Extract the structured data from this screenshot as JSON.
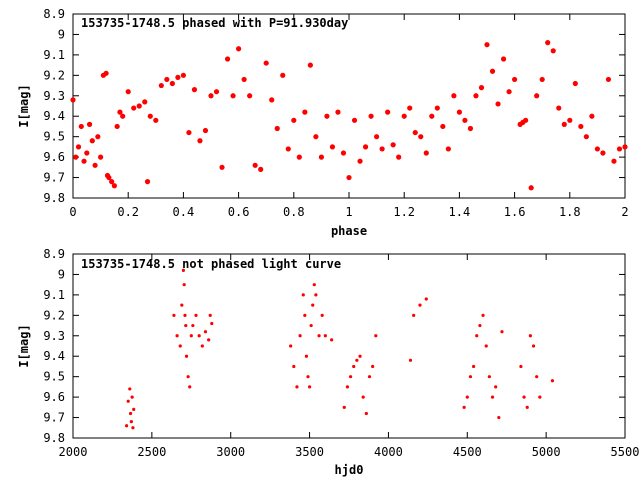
{
  "chart_data": [
    {
      "type": "scatter",
      "title": "153735-1748.5 phased with P=91.930day",
      "xlabel": "phase",
      "ylabel": "I[mag]",
      "xlim": [
        0,
        2
      ],
      "ylim": [
        9.8,
        8.9
      ],
      "y_inverted": true,
      "xticks": [
        "0",
        "0.2",
        "0.4",
        "0.6",
        "0.8",
        "1",
        "1.2",
        "1.4",
        "1.6",
        "1.8",
        "2"
      ],
      "yticks": [
        "8.9",
        "9",
        "9.1",
        "9.2",
        "9.3",
        "9.4",
        "9.5",
        "9.6",
        "9.7",
        "9.8"
      ],
      "grid": false,
      "marker_color": "#ff0000",
      "series": [
        {
          "x": [
            0.0,
            0.01,
            0.02,
            0.03,
            0.04,
            0.05,
            0.06,
            0.07,
            0.08,
            0.09,
            0.1,
            0.11,
            0.12,
            0.125,
            0.13,
            0.14,
            0.15,
            0.16,
            0.17,
            0.18,
            0.2,
            0.22,
            0.24,
            0.26,
            0.27,
            0.28,
            0.3,
            0.32,
            0.34,
            0.36,
            0.38,
            0.4,
            0.42,
            0.44,
            0.46,
            0.48,
            0.5,
            0.52,
            0.54,
            0.56,
            0.58,
            0.6,
            0.62,
            0.64,
            0.66,
            0.68,
            0.7,
            0.72,
            0.74,
            0.76,
            0.78,
            0.8,
            0.82,
            0.84,
            0.86,
            0.88,
            0.9,
            0.92,
            0.94,
            0.96,
            0.98,
            1.0,
            1.02,
            1.04,
            1.06,
            1.08,
            1.1,
            1.12,
            1.14,
            1.16,
            1.18,
            1.2,
            1.22,
            1.24,
            1.26,
            1.28,
            1.3,
            1.32,
            1.34,
            1.36,
            1.38,
            1.4,
            1.42,
            1.44,
            1.46,
            1.48,
            1.5,
            1.52,
            1.54,
            1.56,
            1.58,
            1.6,
            1.62,
            1.63,
            1.64,
            1.66,
            1.68,
            1.7,
            1.72,
            1.74,
            1.76,
            1.78,
            1.8,
            1.82,
            1.84,
            1.86,
            1.88,
            1.9,
            1.92,
            1.94,
            1.96,
            1.98,
            2.0
          ],
          "y": [
            9.32,
            9.6,
            9.55,
            9.45,
            9.62,
            9.58,
            9.44,
            9.52,
            9.64,
            9.5,
            9.6,
            9.2,
            9.19,
            9.69,
            9.7,
            9.72,
            9.74,
            9.45,
            9.38,
            9.4,
            9.28,
            9.36,
            9.35,
            9.33,
            9.72,
            9.4,
            9.42,
            9.25,
            9.22,
            9.24,
            9.21,
            9.2,
            9.48,
            9.27,
            9.52,
            9.47,
            9.3,
            9.28,
            9.65,
            9.12,
            9.3,
            9.07,
            9.22,
            9.3,
            9.64,
            9.66,
            9.14,
            9.32,
            9.46,
            9.2,
            9.56,
            9.42,
            9.6,
            9.38,
            9.15,
            9.5,
            9.6,
            9.4,
            9.55,
            9.38,
            9.58,
            9.7,
            9.42,
            9.62,
            9.55,
            9.4,
            9.5,
            9.56,
            9.38,
            9.54,
            9.6,
            9.4,
            9.36,
            9.48,
            9.5,
            9.58,
            9.4,
            9.36,
            9.45,
            9.56,
            9.3,
            9.38,
            9.42,
            9.46,
            9.3,
            9.26,
            9.05,
            9.18,
            9.34,
            9.12,
            9.28,
            9.22,
            9.44,
            9.43,
            9.42,
            9.75,
            9.3,
            9.22,
            9.04,
            9.08,
            9.36,
            9.44,
            9.42,
            9.24,
            9.45,
            9.5,
            9.4,
            9.56,
            9.58,
            9.22,
            9.62,
            9.56,
            9.55
          ]
        }
      ]
    },
    {
      "type": "scatter",
      "title": "153735-1748.5 not phased light curve",
      "xlabel": "hjd0",
      "ylabel": "I[mag]",
      "xlim": [
        2000,
        5500
      ],
      "ylim": [
        9.8,
        8.9
      ],
      "y_inverted": true,
      "xticks": [
        "2000",
        "2500",
        "3000",
        "3500",
        "4000",
        "4500",
        "5000",
        "5500"
      ],
      "yticks": [
        "8.9",
        "9",
        "9.1",
        "9.2",
        "9.3",
        "9.4",
        "9.5",
        "9.6",
        "9.7",
        "9.8"
      ],
      "grid": false,
      "marker_color": "#ff0000",
      "series": [
        {
          "x": [
            2340,
            2350,
            2360,
            2365,
            2370,
            2375,
            2380,
            2385,
            2640,
            2660,
            2680,
            2690,
            2700,
            2705,
            2710,
            2715,
            2720,
            2730,
            2740,
            2750,
            2760,
            2780,
            2800,
            2820,
            2840,
            2860,
            2870,
            2880,
            3380,
            3400,
            3420,
            3440,
            3460,
            3470,
            3480,
            3490,
            3500,
            3510,
            3520,
            3530,
            3540,
            3560,
            3580,
            3600,
            3640,
            3720,
            3740,
            3760,
            3780,
            3800,
            3820,
            3840,
            3860,
            3880,
            3900,
            3920,
            4140,
            4160,
            4200,
            4240,
            4480,
            4500,
            4520,
            4540,
            4560,
            4580,
            4600,
            4620,
            4640,
            4660,
            4680,
            4700,
            4720,
            4840,
            4860,
            4880,
            4900,
            4920,
            4940,
            4960,
            5040
          ],
          "y": [
            9.74,
            9.62,
            9.56,
            9.68,
            9.72,
            9.6,
            9.75,
            9.66,
            9.2,
            9.3,
            9.35,
            9.15,
            8.98,
            9.05,
            9.2,
            9.25,
            9.4,
            9.5,
            9.55,
            9.3,
            9.25,
            9.2,
            9.3,
            9.35,
            9.28,
            9.32,
            9.2,
            9.24,
            9.35,
            9.45,
            9.55,
            9.3,
            9.1,
            9.2,
            9.4,
            9.5,
            9.55,
            9.25,
            9.15,
            9.05,
            9.1,
            9.3,
            9.2,
            9.3,
            9.32,
            9.65,
            9.55,
            9.5,
            9.45,
            9.42,
            9.4,
            9.6,
            9.68,
            9.5,
            9.45,
            9.3,
            9.42,
            9.2,
            9.15,
            9.12,
            9.65,
            9.6,
            9.5,
            9.45,
            9.3,
            9.25,
            9.2,
            9.35,
            9.5,
            9.6,
            9.55,
            9.7,
            9.28,
            9.45,
            9.6,
            9.65,
            9.3,
            9.35,
            9.5,
            9.6,
            9.52
          ]
        }
      ]
    }
  ]
}
